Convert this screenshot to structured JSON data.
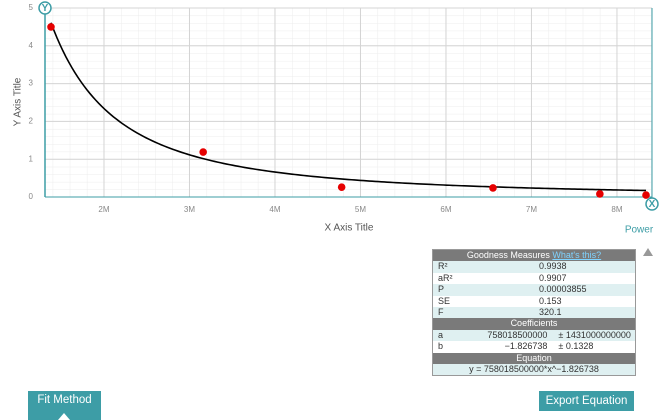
{
  "chart_data": {
    "type": "scatter",
    "x_label": "X Axis Title",
    "y_label": "Y Axis Title",
    "x": [
      1380000,
      3160000,
      4780000,
      6550000,
      7800000,
      8340000
    ],
    "values": [
      4.5,
      1.19,
      0.26,
      0.24,
      0.08,
      0.05
    ],
    "color": "#e60000",
    "xlim": [
      1310000,
      8410000
    ],
    "ylim": [
      0,
      5
    ],
    "xticks": [
      {
        "value": 2000000,
        "label": "2M"
      },
      {
        "value": 3000000,
        "label": "3M"
      },
      {
        "value": 4000000,
        "label": "4M"
      },
      {
        "value": 5000000,
        "label": "5M"
      },
      {
        "value": 6000000,
        "label": "6M"
      },
      {
        "value": 7000000,
        "label": "7M"
      },
      {
        "value": 8000000,
        "label": "8M"
      }
    ],
    "yticks": [
      0,
      1,
      2,
      3,
      4,
      5
    ],
    "grid": true,
    "fit": {
      "name": "Power",
      "a": 758018500000,
      "b": {
        "value": -1.826738,
        "label": "−1.826738"
      },
      "color": "#000000"
    }
  },
  "axis_buttons": {
    "y": "Y",
    "x": "X"
  },
  "goodness": {
    "title": "Goodness Measures",
    "link": "What's this?",
    "rows": [
      [
        "R²",
        0.9938
      ],
      [
        "aR²",
        0.9907
      ],
      [
        "P",
        3.855e-05
      ],
      [
        "SE",
        0.153
      ],
      [
        "F",
        320.1
      ]
    ],
    "coefficients_title": "Coefficients",
    "a_label": "a",
    "a_error": "± 1431000000000",
    "b_label": "b",
    "b_error": "± 0.1328",
    "equation_title": "Equation",
    "equation": "y = 758018500000*x^−1.826738"
  },
  "buttons": {
    "fit_method": "Fit Method",
    "export": "Export Equation"
  }
}
